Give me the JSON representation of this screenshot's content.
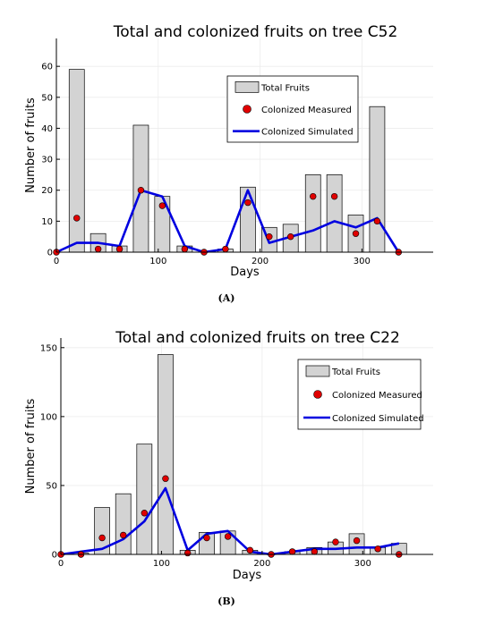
{
  "chart_data": [
    {
      "type": "bar",
      "title": "Total and colonized fruits on tree C52",
      "xlabel": "Days",
      "ylabel": "Number of fruits",
      "xlim": [
        0,
        370
      ],
      "ylim": [
        0,
        69
      ],
      "xticks": [
        0,
        100,
        200,
        300
      ],
      "yticks": [
        0,
        10,
        20,
        30,
        40,
        50,
        60
      ],
      "grid": true,
      "legend_position": "top-right",
      "panel_label": "(A)",
      "series": [
        {
          "name": "Total Fruits",
          "type": "bar",
          "color": "#d3d3d3",
          "x": [
            0,
            20,
            41,
            62,
            83,
            104,
            126,
            145,
            166,
            188,
            209,
            230,
            252,
            273,
            294,
            315,
            336
          ],
          "values": [
            0,
            59,
            6,
            2,
            41,
            18,
            2,
            0,
            1,
            21,
            8,
            9,
            25,
            25,
            12,
            47,
            0
          ]
        },
        {
          "name": "Colonized Measured",
          "type": "scatter",
          "color": "#e00000",
          "x": [
            0,
            20,
            41,
            62,
            83,
            104,
            126,
            145,
            166,
            188,
            209,
            230,
            252,
            273,
            294,
            315,
            336
          ],
          "values": [
            0,
            11,
            1,
            1,
            20,
            15,
            1,
            0,
            1,
            16,
            5,
            5,
            18,
            18,
            6,
            10,
            0
          ]
        },
        {
          "name": "Colonized Simulated",
          "type": "line",
          "color": "#0000e0",
          "x": [
            0,
            20,
            41,
            62,
            83,
            104,
            126,
            145,
            166,
            188,
            209,
            230,
            252,
            273,
            294,
            315,
            336
          ],
          "values": [
            0,
            3,
            3,
            2,
            20,
            18,
            2,
            0,
            1,
            20,
            3,
            5,
            7,
            10,
            8,
            11,
            0
          ]
        }
      ]
    },
    {
      "type": "bar",
      "title": "Total and colonized fruits on tree C22",
      "xlabel": "Days",
      "ylabel": "Number of fruits",
      "xlim": [
        0,
        370
      ],
      "ylim": [
        0,
        157
      ],
      "xticks": [
        0,
        100,
        200,
        300
      ],
      "yticks": [
        0,
        50,
        100,
        150
      ],
      "grid": true,
      "legend_position": "top-right",
      "panel_label": "(B)",
      "series": [
        {
          "name": "Total Fruits",
          "type": "bar",
          "color": "#d3d3d3",
          "x": [
            0,
            20,
            41,
            62,
            83,
            104,
            126,
            145,
            166,
            188,
            209,
            230,
            252,
            273,
            294,
            315,
            336
          ],
          "values": [
            0,
            1,
            34,
            44,
            80,
            145,
            3,
            16,
            17,
            3,
            0,
            2,
            5,
            9,
            15,
            5,
            8
          ]
        },
        {
          "name": "Colonized Measured",
          "type": "scatter",
          "color": "#e00000",
          "x": [
            0,
            20,
            41,
            62,
            83,
            104,
            126,
            145,
            166,
            188,
            209,
            230,
            252,
            273,
            294,
            315,
            336
          ],
          "values": [
            0,
            0,
            12,
            14,
            30,
            55,
            1,
            12,
            13,
            3,
            0,
            2,
            2,
            9,
            10,
            4,
            0
          ]
        },
        {
          "name": "Colonized Simulated",
          "type": "line",
          "color": "#0000e0",
          "x": [
            0,
            20,
            41,
            62,
            83,
            104,
            126,
            145,
            166,
            188,
            209,
            230,
            252,
            273,
            294,
            315,
            336
          ],
          "values": [
            0,
            2,
            4,
            11,
            24,
            48,
            3,
            15,
            17,
            2,
            0,
            2,
            4,
            4,
            5,
            5,
            8
          ]
        }
      ]
    }
  ]
}
